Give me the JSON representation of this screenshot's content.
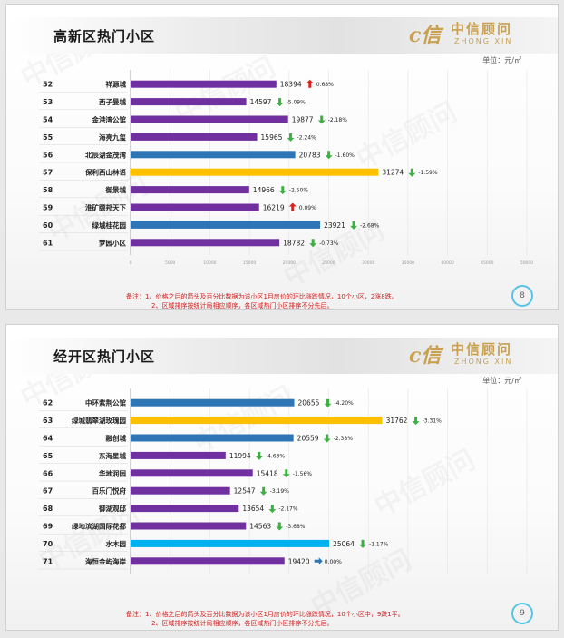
{
  "slides": [
    {
      "title": "高新区热门小区",
      "unit_label": "单位：元/㎡",
      "page_number": "8",
      "note_line1": "备注：1、价格之后的箭头及百分比数据为该小区1月房价的环比涨跌情况，10个小区，2涨8跌。",
      "note_line2": "2、区域排序按统计局相应顺序，各区域热门小区排序不分先后。"
    },
    {
      "title": "经开区热门小区",
      "unit_label": "单位：元/㎡",
      "page_number": "9",
      "note_line1": "备注：1、价格之后的箭头及百分比数据为该小区1月房价的环比涨跌情况，10个小区中，9跌1平。",
      "note_line2": "2、区域排序按统计局相应顺序，各区域热门小区排序不分先后。"
    }
  ],
  "logo": {
    "mark": "c信",
    "cn": "中信顾问",
    "en": "ZHONG XIN"
  },
  "watermark_text": "中信顾问",
  "colors": {
    "purple": "#7030a0",
    "blue": "#2e75b6",
    "gold": "#ffc000",
    "cyan": "#00b0f0",
    "up": "#e02020",
    "down": "#3cb043",
    "flat": "#2e75b6",
    "title_accent": "#d02030"
  },
  "chart_data": [
    {
      "type": "bar",
      "orientation": "horizontal",
      "title": "高新区热门小区",
      "ylabel": "",
      "xlabel": "",
      "xlim": [
        0,
        50000
      ],
      "xticks": [
        0,
        5000,
        10000,
        15000,
        20000,
        25000,
        30000,
        35000,
        40000,
        45000,
        50000
      ],
      "grid": true,
      "ranks": [
        "52",
        "53",
        "54",
        "55",
        "56",
        "57",
        "58",
        "59",
        "60",
        "61"
      ],
      "categories": [
        "祥源城",
        "西子曼城",
        "金港湾公馆",
        "海亮九玺",
        "北辰湖金茂湾",
        "保利西山林语",
        "御景城",
        "淮矿颐邦天下",
        "绿城桂花园",
        "梦园小区"
      ],
      "values": [
        18394,
        14597,
        19877,
        15965,
        20783,
        31274,
        14966,
        16219,
        23921,
        18782
      ],
      "changes": [
        "0.68%",
        "-5.09%",
        "-2.18%",
        "-2.24%",
        "-1.60%",
        "-1.59%",
        "-2.50%",
        "0.09%",
        "-2.68%",
        "-0.73%"
      ],
      "directions": [
        "up",
        "down",
        "down",
        "down",
        "down",
        "down",
        "down",
        "up",
        "down",
        "down"
      ],
      "bar_colors": [
        "purple",
        "purple",
        "purple",
        "purple",
        "blue",
        "gold",
        "purple",
        "purple",
        "blue",
        "purple"
      ]
    },
    {
      "type": "bar",
      "orientation": "horizontal",
      "title": "经开区热门小区",
      "ylabel": "",
      "xlabel": "",
      "xlim": [
        0,
        50000
      ],
      "xticks": [],
      "grid": true,
      "ranks": [
        "62",
        "63",
        "64",
        "65",
        "66",
        "67",
        "68",
        "69",
        "70",
        "71"
      ],
      "categories": [
        "中环紫荆公馆",
        "绿城翡翠湖玫瑰园",
        "融创城",
        "东海星城",
        "华地润园",
        "百乐门悦府",
        "御湖观邸",
        "绿地滨湖国际花都",
        "水木园",
        "海恒金屿海岸"
      ],
      "values": [
        20655,
        31762,
        20559,
        11994,
        15418,
        12547,
        13654,
        14563,
        25064,
        19420
      ],
      "changes": [
        "-4.20%",
        "-3.31%",
        "-2.38%",
        "-4.63%",
        "-1.56%",
        "-3.19%",
        "-2.17%",
        "-3.68%",
        "-1.17%",
        "0.00%"
      ],
      "directions": [
        "down",
        "down",
        "down",
        "down",
        "down",
        "down",
        "down",
        "down",
        "down",
        "flat"
      ],
      "bar_colors": [
        "blue",
        "gold",
        "blue",
        "purple",
        "purple",
        "purple",
        "purple",
        "purple",
        "cyan",
        "purple"
      ]
    }
  ]
}
